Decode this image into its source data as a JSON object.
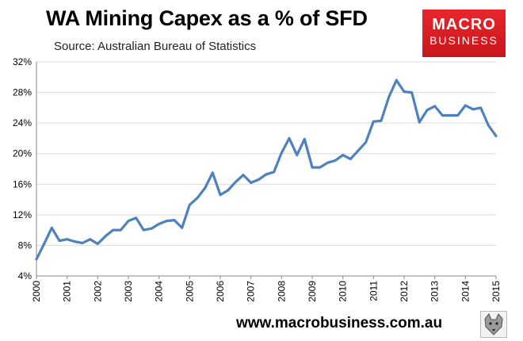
{
  "header": {
    "title": "WA Mining Capex as a % of SFD",
    "source": "Source: Australian Bureau of Statistics"
  },
  "logo": {
    "line1": "MACRO",
    "line2": "BUSINESS"
  },
  "footer": {
    "url": "www.macrobusiness.com.au"
  },
  "colors": {
    "line": "#4f81bd",
    "logo_red": "#e8262c",
    "grid": "#d9d9d9"
  },
  "chart_data": {
    "type": "line",
    "title": "WA Mining Capex as a % of SFD",
    "xlabel": "",
    "ylabel": "",
    "ylim": [
      4,
      32
    ],
    "yticks": [
      4,
      8,
      12,
      16,
      20,
      24,
      28,
      32
    ],
    "ytick_labels": [
      "4%",
      "8%",
      "12%",
      "16%",
      "20%",
      "24%",
      "28%",
      "32%"
    ],
    "xlim": [
      2000,
      2015
    ],
    "xticks": [
      2000,
      2001,
      2002,
      2003,
      2004,
      2005,
      2006,
      2007,
      2008,
      2009,
      2010,
      2011,
      2012,
      2013,
      2014,
      2015
    ],
    "xtick_labels": [
      "2000",
      "2001",
      "2002",
      "2003",
      "2004",
      "2005",
      "2006",
      "2007",
      "2008",
      "2009",
      "2010",
      "2011",
      "2012",
      "2013",
      "2014",
      "2015"
    ],
    "grid": "horizontal",
    "series": [
      {
        "name": "WA Mining Capex as a % of SFD",
        "x": [
          2000.0,
          2000.25,
          2000.5,
          2000.75,
          2001.0,
          2001.25,
          2001.5,
          2001.75,
          2002.0,
          2002.25,
          2002.5,
          2002.75,
          2003.0,
          2003.25,
          2003.5,
          2003.75,
          2004.0,
          2004.25,
          2004.5,
          2004.75,
          2005.0,
          2005.25,
          2005.5,
          2005.75,
          2006.0,
          2006.25,
          2006.5,
          2006.75,
          2007.0,
          2007.25,
          2007.5,
          2007.75,
          2008.0,
          2008.25,
          2008.5,
          2008.75,
          2009.0,
          2009.25,
          2009.5,
          2009.75,
          2010.0,
          2010.25,
          2010.5,
          2010.75,
          2011.0,
          2011.25,
          2011.5,
          2011.75,
          2012.0,
          2012.25,
          2012.5,
          2012.75,
          2013.0,
          2013.25,
          2013.5,
          2013.75,
          2014.0,
          2014.25,
          2014.5,
          2014.75,
          2015.0
        ],
        "values": [
          6.2,
          8.2,
          10.3,
          8.6,
          8.8,
          8.5,
          8.3,
          8.8,
          8.2,
          9.2,
          10.0,
          10.0,
          11.2,
          11.6,
          10.0,
          10.2,
          10.8,
          11.2,
          11.3,
          10.3,
          13.3,
          14.2,
          15.5,
          17.5,
          14.6,
          15.2,
          16.3,
          17.2,
          16.2,
          16.6,
          17.3,
          17.6,
          20.1,
          22.0,
          19.8,
          21.9,
          18.2,
          18.2,
          18.8,
          19.1,
          19.8,
          19.3,
          20.4,
          21.5,
          24.2,
          24.3,
          27.4,
          29.6,
          28.1,
          28.0,
          24.1,
          25.7,
          26.2,
          25.0,
          25.0,
          25.0,
          26.3,
          25.8,
          26.0,
          23.7,
          22.3
        ]
      }
    ]
  }
}
